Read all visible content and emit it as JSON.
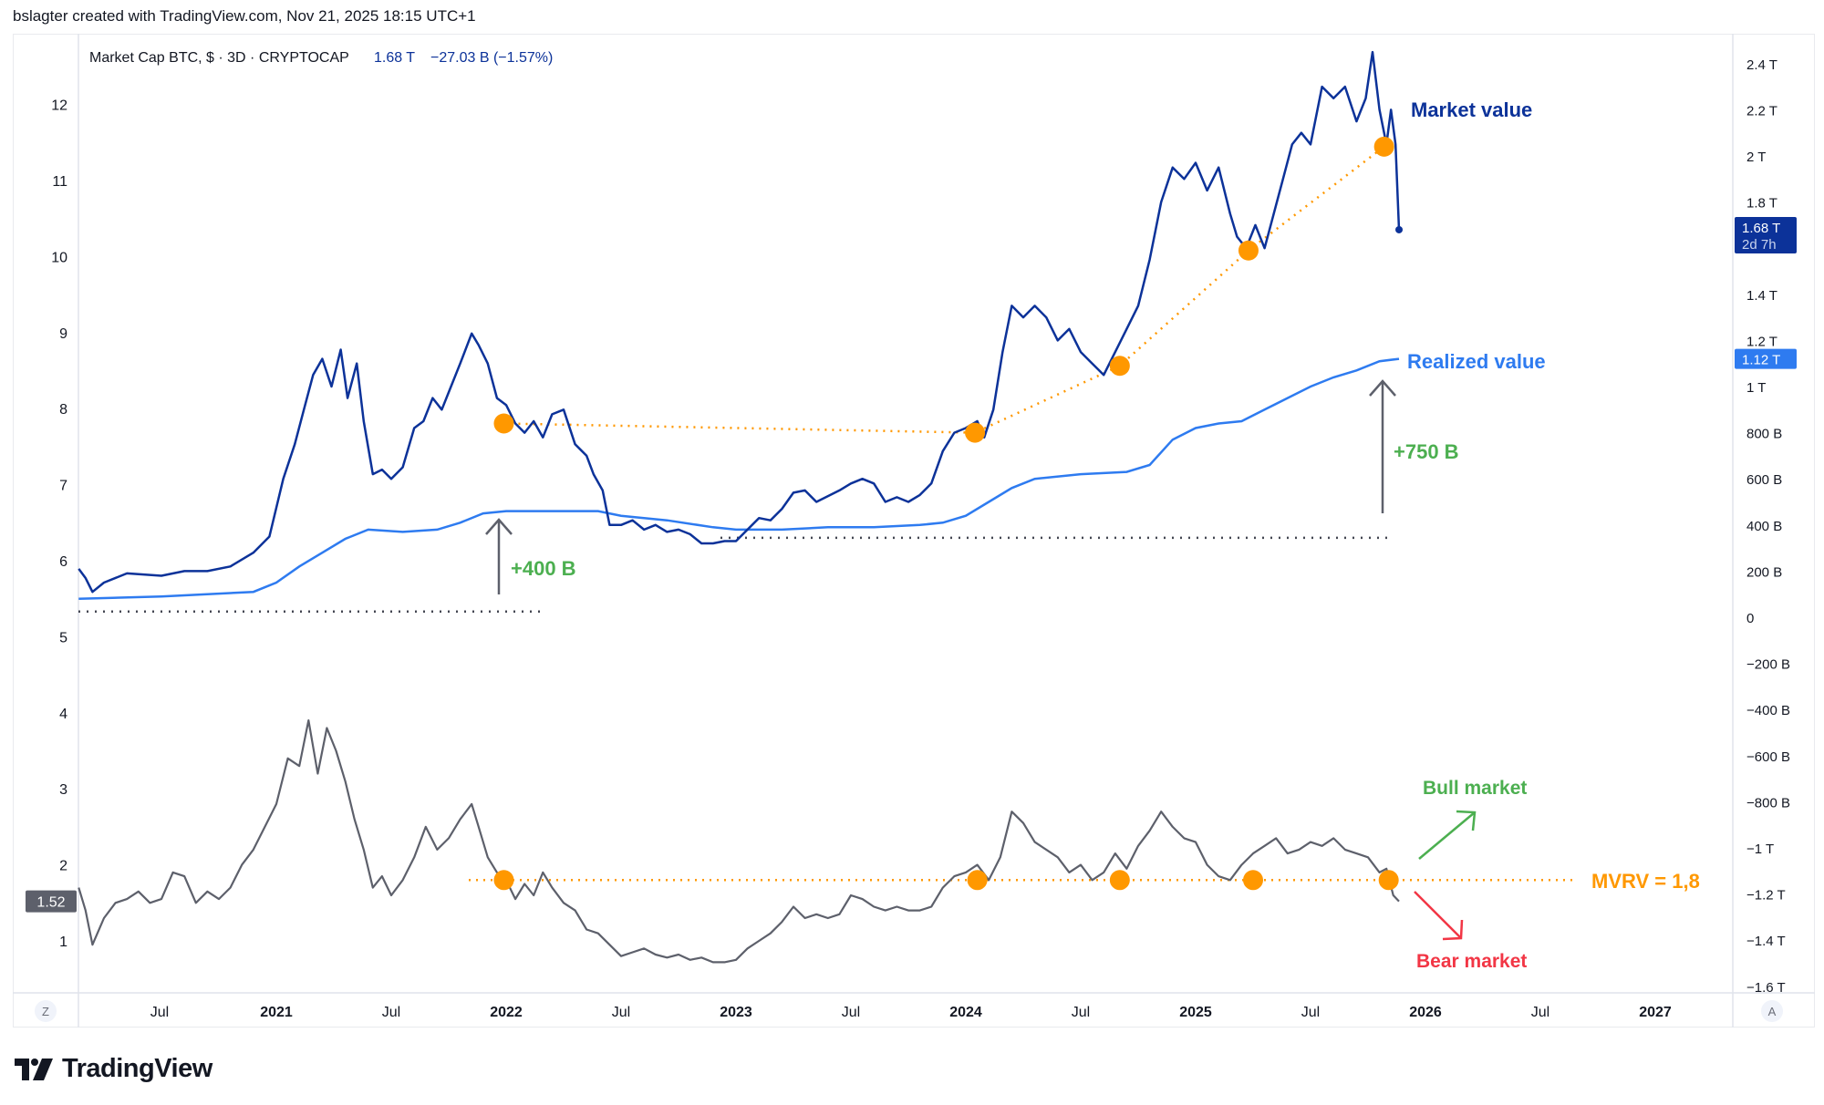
{
  "header": {
    "credit": "bslagter created with TradingView.com, Nov 21, 2025 18:15 UTC+1"
  },
  "legend": {
    "symbol": "Market Cap BTC, $ · 3D · CRYPTOCAP",
    "last": "1.68 T",
    "change": "−27.03 B (−1.57%)"
  },
  "price_badges": {
    "market_cap": "1.68 T",
    "countdown": "2d 7h",
    "realized": "1.12 T",
    "mvrv": "1.52"
  },
  "buttons": {
    "left": "Z",
    "right": "A"
  },
  "brand": {
    "name": "TradingView",
    "logo": "tradingview-logo"
  },
  "colors": {
    "market": "#0c3299",
    "realized": "#2e7bf0",
    "mvrv": "#5d606b",
    "orange": "#ff9800",
    "green": "#4caf50",
    "red": "#f23645",
    "arrow": "#5d606b"
  },
  "chart_data": [
    {
      "type": "line",
      "title": "Market Cap BTC, $ · 3D · CRYPTOCAP",
      "xlabel": "",
      "ylabel": "",
      "x_ticks": [
        "Jul",
        "2021",
        "Jul",
        "2022",
        "Jul",
        "2023",
        "Jul",
        "2024",
        "Jul",
        "2025",
        "Jul",
        "2026",
        "Jul",
        "2027"
      ],
      "y_ticks": [
        "2.4 T",
        "2.2 T",
        "2 T",
        "1.8 T",
        "1.4 T",
        "1.2 T",
        "1 T",
        "800 B",
        "600 B",
        "400 B",
        "200 B",
        "0",
        "−200 B",
        "−400 B",
        "−600 B",
        "−800 B",
        "−1 T",
        "−1.2 T",
        "−1.4 T",
        "−1.6 T"
      ],
      "y_tick_values": [
        2.4,
        2.2,
        2.0,
        1.8,
        1.4,
        1.2,
        1.0,
        0.8,
        0.6,
        0.4,
        0.2,
        0,
        -0.2,
        -0.4,
        -0.6,
        -0.8,
        -1.0,
        -1.2,
        -1.4,
        -1.6
      ],
      "ylim": [
        -1.6,
        2.45
      ],
      "xlim": [
        2020.14,
        2027.35
      ],
      "series": [
        {
          "name": "Market value",
          "x": [
            2020.14,
            2020.17,
            2020.2,
            2020.25,
            2020.35,
            2020.5,
            2020.6,
            2020.7,
            2020.8,
            2020.9,
            2020.97,
            2021.03,
            2021.08,
            2021.12,
            2021.16,
            2021.2,
            2021.24,
            2021.28,
            2021.31,
            2021.35,
            2021.38,
            2021.42,
            2021.46,
            2021.5,
            2021.55,
            2021.6,
            2021.64,
            2021.68,
            2021.72,
            2021.76,
            2021.8,
            2021.85,
            2021.88,
            2021.92,
            2021.96,
            2022.0,
            2022.04,
            2022.08,
            2022.12,
            2022.16,
            2022.2,
            2022.25,
            2022.3,
            2022.35,
            2022.38,
            2022.42,
            2022.45,
            2022.5,
            2022.55,
            2022.6,
            2022.65,
            2022.7,
            2022.75,
            2022.8,
            2022.85,
            2022.9,
            2022.95,
            2023.0,
            2023.05,
            2023.1,
            2023.15,
            2023.2,
            2023.25,
            2023.3,
            2023.35,
            2023.45,
            2023.5,
            2023.55,
            2023.6,
            2023.65,
            2023.7,
            2023.75,
            2023.8,
            2023.85,
            2023.9,
            2023.95,
            2024.0,
            2024.05,
            2024.08,
            2024.12,
            2024.16,
            2024.2,
            2024.25,
            2024.3,
            2024.35,
            2024.4,
            2024.45,
            2024.5,
            2024.55,
            2024.6,
            2024.65,
            2024.7,
            2024.75,
            2024.8,
            2024.85,
            2024.9,
            2024.95,
            2025.0,
            2025.05,
            2025.1,
            2025.15,
            2025.18,
            2025.22,
            2025.26,
            2025.3,
            2025.34,
            2025.38,
            2025.42,
            2025.46,
            2025.5,
            2025.55,
            2025.6,
            2025.65,
            2025.7,
            2025.74,
            2025.77,
            2025.8,
            2025.83,
            2025.85,
            2025.87,
            2025.885
          ],
          "values": [
            0.21,
            0.17,
            0.11,
            0.15,
            0.19,
            0.18,
            0.2,
            0.2,
            0.22,
            0.28,
            0.35,
            0.6,
            0.75,
            0.9,
            1.05,
            1.12,
            1.0,
            1.16,
            0.95,
            1.1,
            0.85,
            0.62,
            0.64,
            0.6,
            0.65,
            0.82,
            0.85,
            0.95,
            0.9,
            1.0,
            1.1,
            1.23,
            1.18,
            1.1,
            0.95,
            0.92,
            0.84,
            0.8,
            0.85,
            0.78,
            0.88,
            0.9,
            0.75,
            0.7,
            0.62,
            0.55,
            0.4,
            0.4,
            0.42,
            0.38,
            0.4,
            0.37,
            0.38,
            0.36,
            0.32,
            0.32,
            0.33,
            0.33,
            0.38,
            0.43,
            0.42,
            0.47,
            0.54,
            0.55,
            0.5,
            0.55,
            0.58,
            0.6,
            0.58,
            0.5,
            0.52,
            0.5,
            0.53,
            0.58,
            0.72,
            0.8,
            0.82,
            0.85,
            0.78,
            0.9,
            1.15,
            1.35,
            1.3,
            1.35,
            1.3,
            1.2,
            1.25,
            1.15,
            1.1,
            1.05,
            1.15,
            1.25,
            1.35,
            1.55,
            1.8,
            1.95,
            1.9,
            1.97,
            1.85,
            1.95,
            1.75,
            1.65,
            1.6,
            1.7,
            1.6,
            1.75,
            1.9,
            2.05,
            2.1,
            2.05,
            2.3,
            2.25,
            2.3,
            2.15,
            2.25,
            2.45,
            2.2,
            2.05,
            2.2,
            2.05,
            1.68
          ]
        },
        {
          "name": "Realized value",
          "x": [
            2020.14,
            2020.5,
            2020.9,
            2021.0,
            2021.1,
            2021.2,
            2021.3,
            2021.4,
            2021.55,
            2021.7,
            2021.8,
            2021.9,
            2022.0,
            2022.2,
            2022.4,
            2022.5,
            2022.7,
            2022.9,
            2023.0,
            2023.2,
            2023.4,
            2023.6,
            2023.8,
            2023.9,
            2024.0,
            2024.1,
            2024.2,
            2024.3,
            2024.5,
            2024.7,
            2024.8,
            2024.9,
            2025.0,
            2025.1,
            2025.2,
            2025.3,
            2025.4,
            2025.5,
            2025.6,
            2025.7,
            2025.8,
            2025.885
          ],
          "values": [
            0.08,
            0.09,
            0.11,
            0.15,
            0.22,
            0.28,
            0.34,
            0.38,
            0.37,
            0.38,
            0.41,
            0.45,
            0.46,
            0.46,
            0.46,
            0.44,
            0.42,
            0.39,
            0.38,
            0.38,
            0.39,
            0.39,
            0.4,
            0.41,
            0.44,
            0.5,
            0.56,
            0.6,
            0.62,
            0.63,
            0.66,
            0.77,
            0.82,
            0.84,
            0.85,
            0.9,
            0.95,
            1.0,
            1.04,
            1.07,
            1.11,
            1.12
          ]
        }
      ]
    },
    {
      "type": "line",
      "title": "MVRV",
      "y_ticks": [
        "12",
        "11",
        "10",
        "9",
        "8",
        "7",
        "6",
        "5",
        "4",
        "3",
        "2",
        "1"
      ],
      "y_tick_values": [
        12,
        11,
        10,
        9,
        8,
        7,
        6,
        5,
        4,
        3,
        2,
        1
      ],
      "ylim": [
        0.3,
        12.5
      ],
      "series": [
        {
          "name": "MVRV",
          "x": [
            2020.14,
            2020.17,
            2020.2,
            2020.25,
            2020.3,
            2020.35,
            2020.4,
            2020.45,
            2020.5,
            2020.55,
            2020.6,
            2020.65,
            2020.7,
            2020.75,
            2020.8,
            2020.85,
            2020.9,
            2020.95,
            2021.0,
            2021.05,
            2021.1,
            2021.14,
            2021.18,
            2021.22,
            2021.26,
            2021.3,
            2021.34,
            2021.38,
            2021.42,
            2021.46,
            2021.5,
            2021.55,
            2021.6,
            2021.65,
            2021.7,
            2021.75,
            2021.8,
            2021.85,
            2021.88,
            2021.92,
            2021.96,
            2022.0,
            2022.04,
            2022.08,
            2022.12,
            2022.16,
            2022.2,
            2022.25,
            2022.3,
            2022.35,
            2022.4,
            2022.45,
            2022.5,
            2022.55,
            2022.6,
            2022.65,
            2022.7,
            2022.75,
            2022.8,
            2022.85,
            2022.9,
            2022.95,
            2023.0,
            2023.05,
            2023.1,
            2023.15,
            2023.2,
            2023.25,
            2023.3,
            2023.35,
            2023.4,
            2023.45,
            2023.5,
            2023.55,
            2023.6,
            2023.65,
            2023.7,
            2023.75,
            2023.8,
            2023.85,
            2023.9,
            2023.95,
            2024.0,
            2024.05,
            2024.1,
            2024.15,
            2024.2,
            2024.25,
            2024.3,
            2024.35,
            2024.4,
            2024.45,
            2024.5,
            2024.55,
            2024.6,
            2024.65,
            2024.7,
            2024.75,
            2024.8,
            2024.85,
            2024.9,
            2024.95,
            2025.0,
            2025.05,
            2025.1,
            2025.15,
            2025.2,
            2025.25,
            2025.3,
            2025.35,
            2025.4,
            2025.45,
            2025.5,
            2025.55,
            2025.6,
            2025.65,
            2025.7,
            2025.75,
            2025.8,
            2025.83,
            2025.86,
            2025.885
          ],
          "values": [
            1.7,
            1.4,
            0.95,
            1.3,
            1.5,
            1.55,
            1.65,
            1.5,
            1.55,
            1.9,
            1.85,
            1.5,
            1.65,
            1.55,
            1.7,
            2.0,
            2.2,
            2.5,
            2.8,
            3.4,
            3.3,
            3.9,
            3.2,
            3.8,
            3.5,
            3.1,
            2.6,
            2.2,
            1.7,
            1.85,
            1.6,
            1.8,
            2.1,
            2.5,
            2.2,
            2.35,
            2.6,
            2.8,
            2.5,
            2.1,
            1.9,
            1.8,
            1.55,
            1.75,
            1.6,
            1.9,
            1.7,
            1.5,
            1.4,
            1.15,
            1.1,
            0.95,
            0.8,
            0.85,
            0.9,
            0.82,
            0.78,
            0.82,
            0.75,
            0.78,
            0.72,
            0.72,
            0.75,
            0.9,
            1.0,
            1.1,
            1.25,
            1.45,
            1.3,
            1.35,
            1.3,
            1.35,
            1.6,
            1.55,
            1.45,
            1.4,
            1.45,
            1.4,
            1.4,
            1.45,
            1.7,
            1.85,
            1.9,
            2.0,
            1.8,
            2.1,
            2.7,
            2.55,
            2.3,
            2.2,
            2.1,
            1.9,
            2.0,
            1.8,
            1.9,
            2.15,
            1.95,
            2.25,
            2.45,
            2.7,
            2.5,
            2.35,
            2.3,
            2.0,
            1.85,
            1.8,
            2.0,
            2.15,
            2.25,
            2.35,
            2.15,
            2.2,
            2.3,
            2.25,
            2.35,
            2.2,
            2.15,
            2.1,
            1.9,
            1.95,
            1.6,
            1.52
          ]
        }
      ]
    }
  ],
  "annotations": {
    "market_value": "Market value",
    "realized_value": "Realized value",
    "plus_400": "+400 B",
    "plus_750": "+750 B",
    "bull_market": "Bull market",
    "bear_market": "Bear market",
    "mvrv_level": "MVRV = 1,8",
    "mvrv_level_value": 1.8,
    "market_cap_markers": [
      {
        "x": 2021.99,
        "y": 0.84
      },
      {
        "x": 2024.04,
        "y": 0.8
      },
      {
        "x": 2024.67,
        "y": 1.09
      },
      {
        "x": 2025.23,
        "y": 1.59
      },
      {
        "x": 2025.82,
        "y": 2.04
      }
    ],
    "mvrv_markers": [
      2021.99,
      2024.05,
      2024.67,
      2025.25,
      2025.84
    ],
    "baseline_2020_T": 0.08,
    "baseline_2023_T": 0.38
  }
}
